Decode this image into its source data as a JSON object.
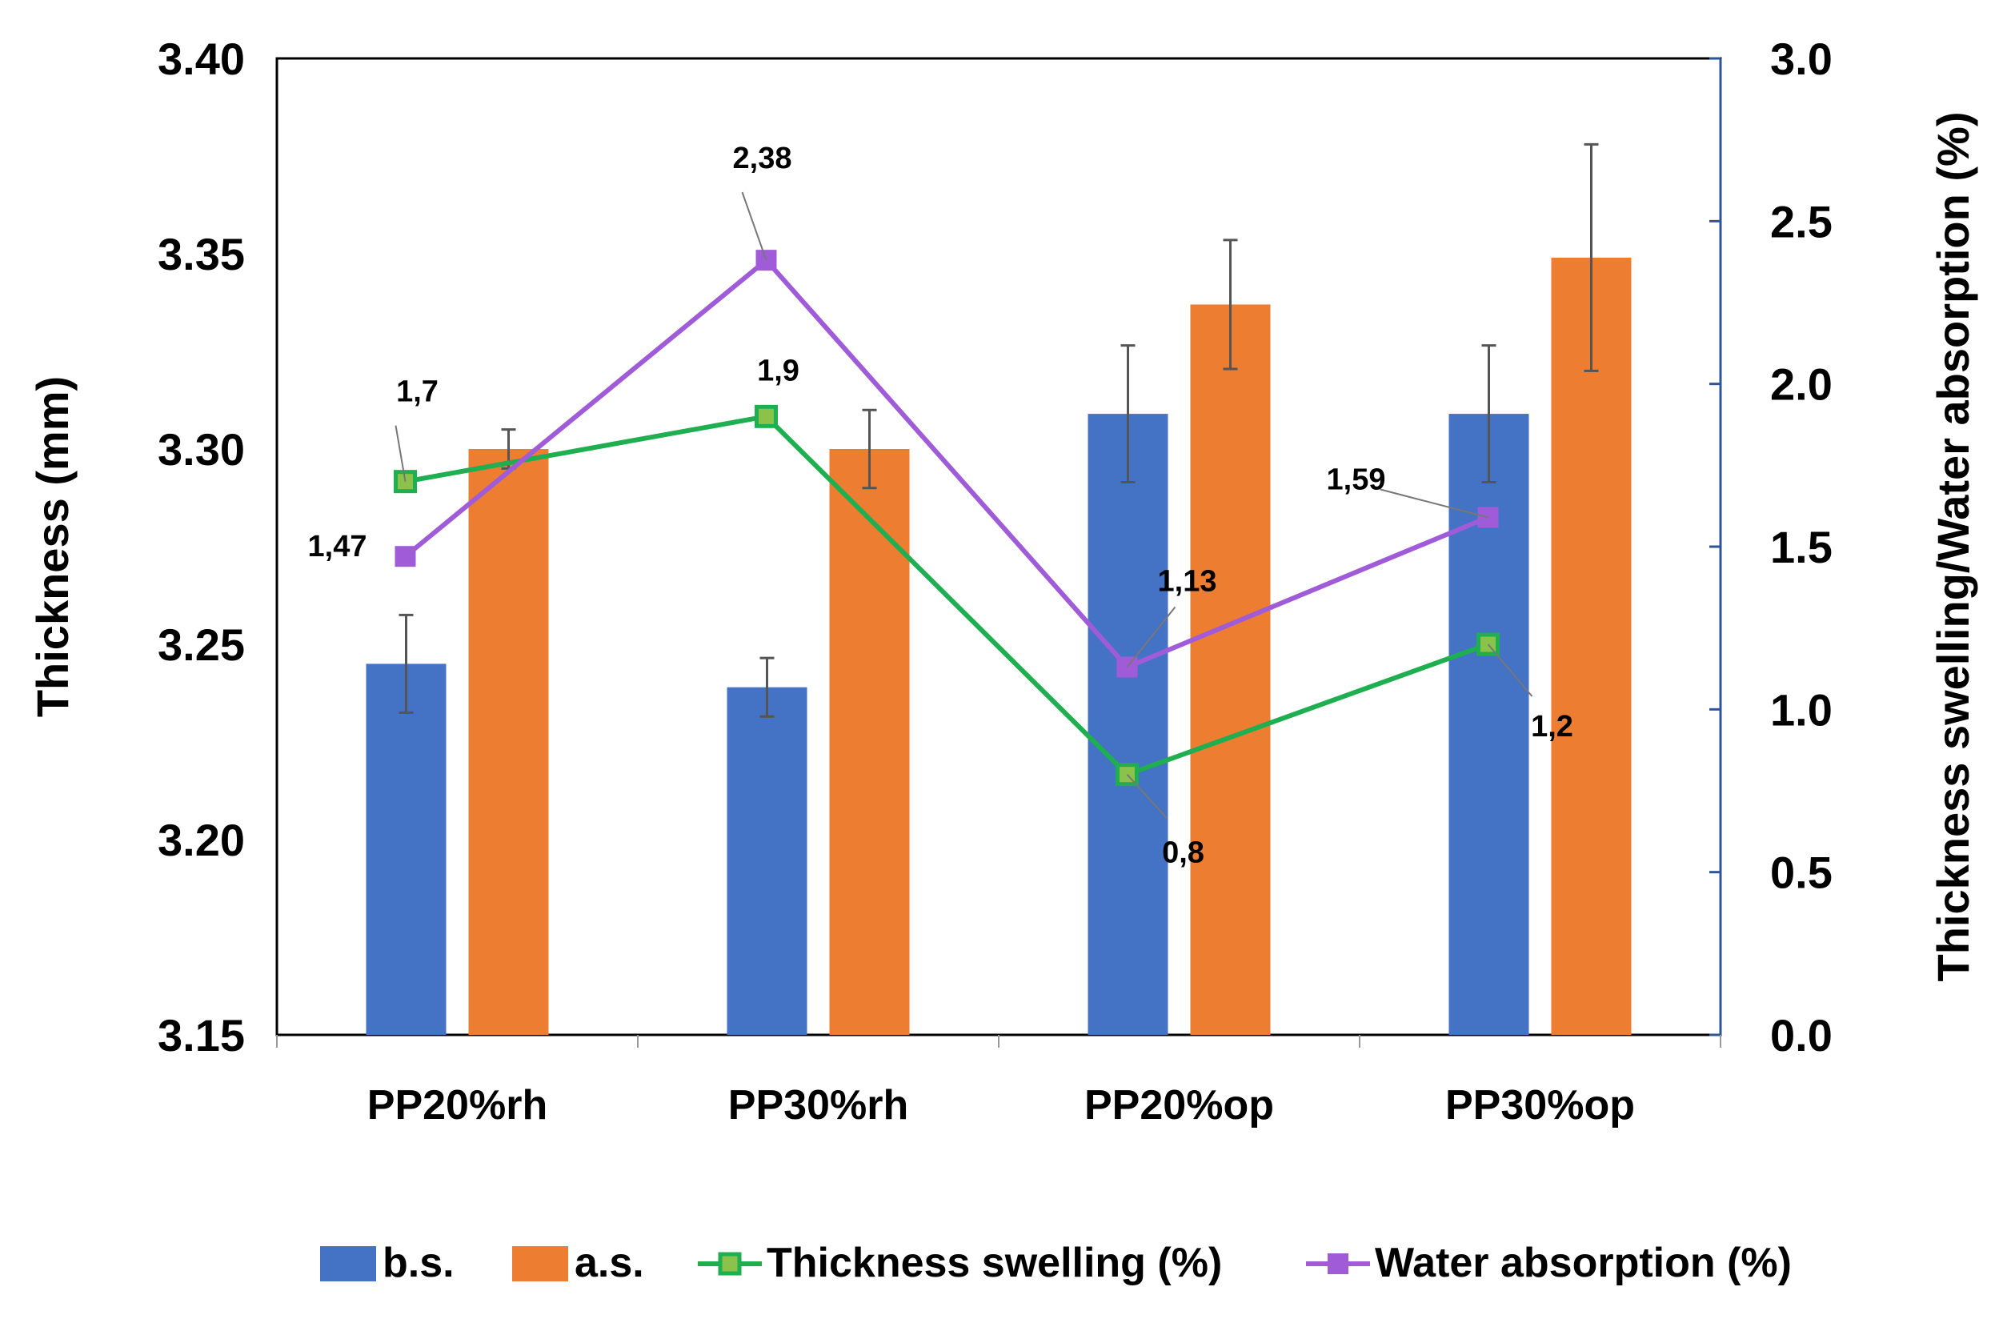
{
  "chart_data": {
    "type": "bar",
    "categories": [
      "PP20%rh",
      "PP30%rh",
      "PP20%op",
      "PP30%op"
    ],
    "y_left": {
      "label": "Thickness (mm)",
      "range": [
        3.15,
        3.4
      ],
      "ticks": [
        "3.15",
        "3.20",
        "3.25",
        "3.30",
        "3.35",
        "3.40"
      ],
      "tick_values": [
        3.15,
        3.2,
        3.25,
        3.3,
        3.35,
        3.4
      ]
    },
    "y_right": {
      "label": "Thickness swelling/Water absorption (%)",
      "range": [
        0,
        3.0
      ],
      "ticks": [
        "0.0",
        "0.5",
        "1.0",
        "1.5",
        "2.0",
        "2.5",
        "3.0"
      ],
      "tick_values": [
        0,
        0.5,
        1.0,
        1.5,
        2.0,
        2.5,
        3.0
      ]
    },
    "bar_series": [
      {
        "name": "b.s.",
        "color": "#4472C4",
        "values": [
          3.245,
          3.239,
          3.309,
          3.309
        ],
        "errors": [
          0.0125,
          0.0075,
          0.0175,
          0.0175
        ]
      },
      {
        "name": "a.s.",
        "color": "#ED7D31",
        "values": [
          3.3,
          3.3,
          3.337,
          3.349
        ],
        "errors": [
          0.005,
          0.01,
          0.0165,
          0.029
        ]
      }
    ],
    "line_series": [
      {
        "name": "Thickness swelling (%)",
        "color": "#1FAE50",
        "values": [
          1.7,
          1.9,
          0.8,
          1.2
        ],
        "labels": [
          "1,7",
          "1,9",
          "0,8",
          "1,2"
        ]
      },
      {
        "name": "Water absorption (%)",
        "color": "#A05CD8",
        "values": [
          1.47,
          2.38,
          1.13,
          1.59
        ],
        "labels": [
          "1,47",
          "2,38",
          "1,13",
          "1,59"
        ]
      }
    ],
    "legend": {
      "position": "bottom",
      "items": [
        "b.s.",
        "a.s.",
        "Thickness swelling (%)",
        "Water absorption (%)"
      ]
    },
    "grid": false
  }
}
